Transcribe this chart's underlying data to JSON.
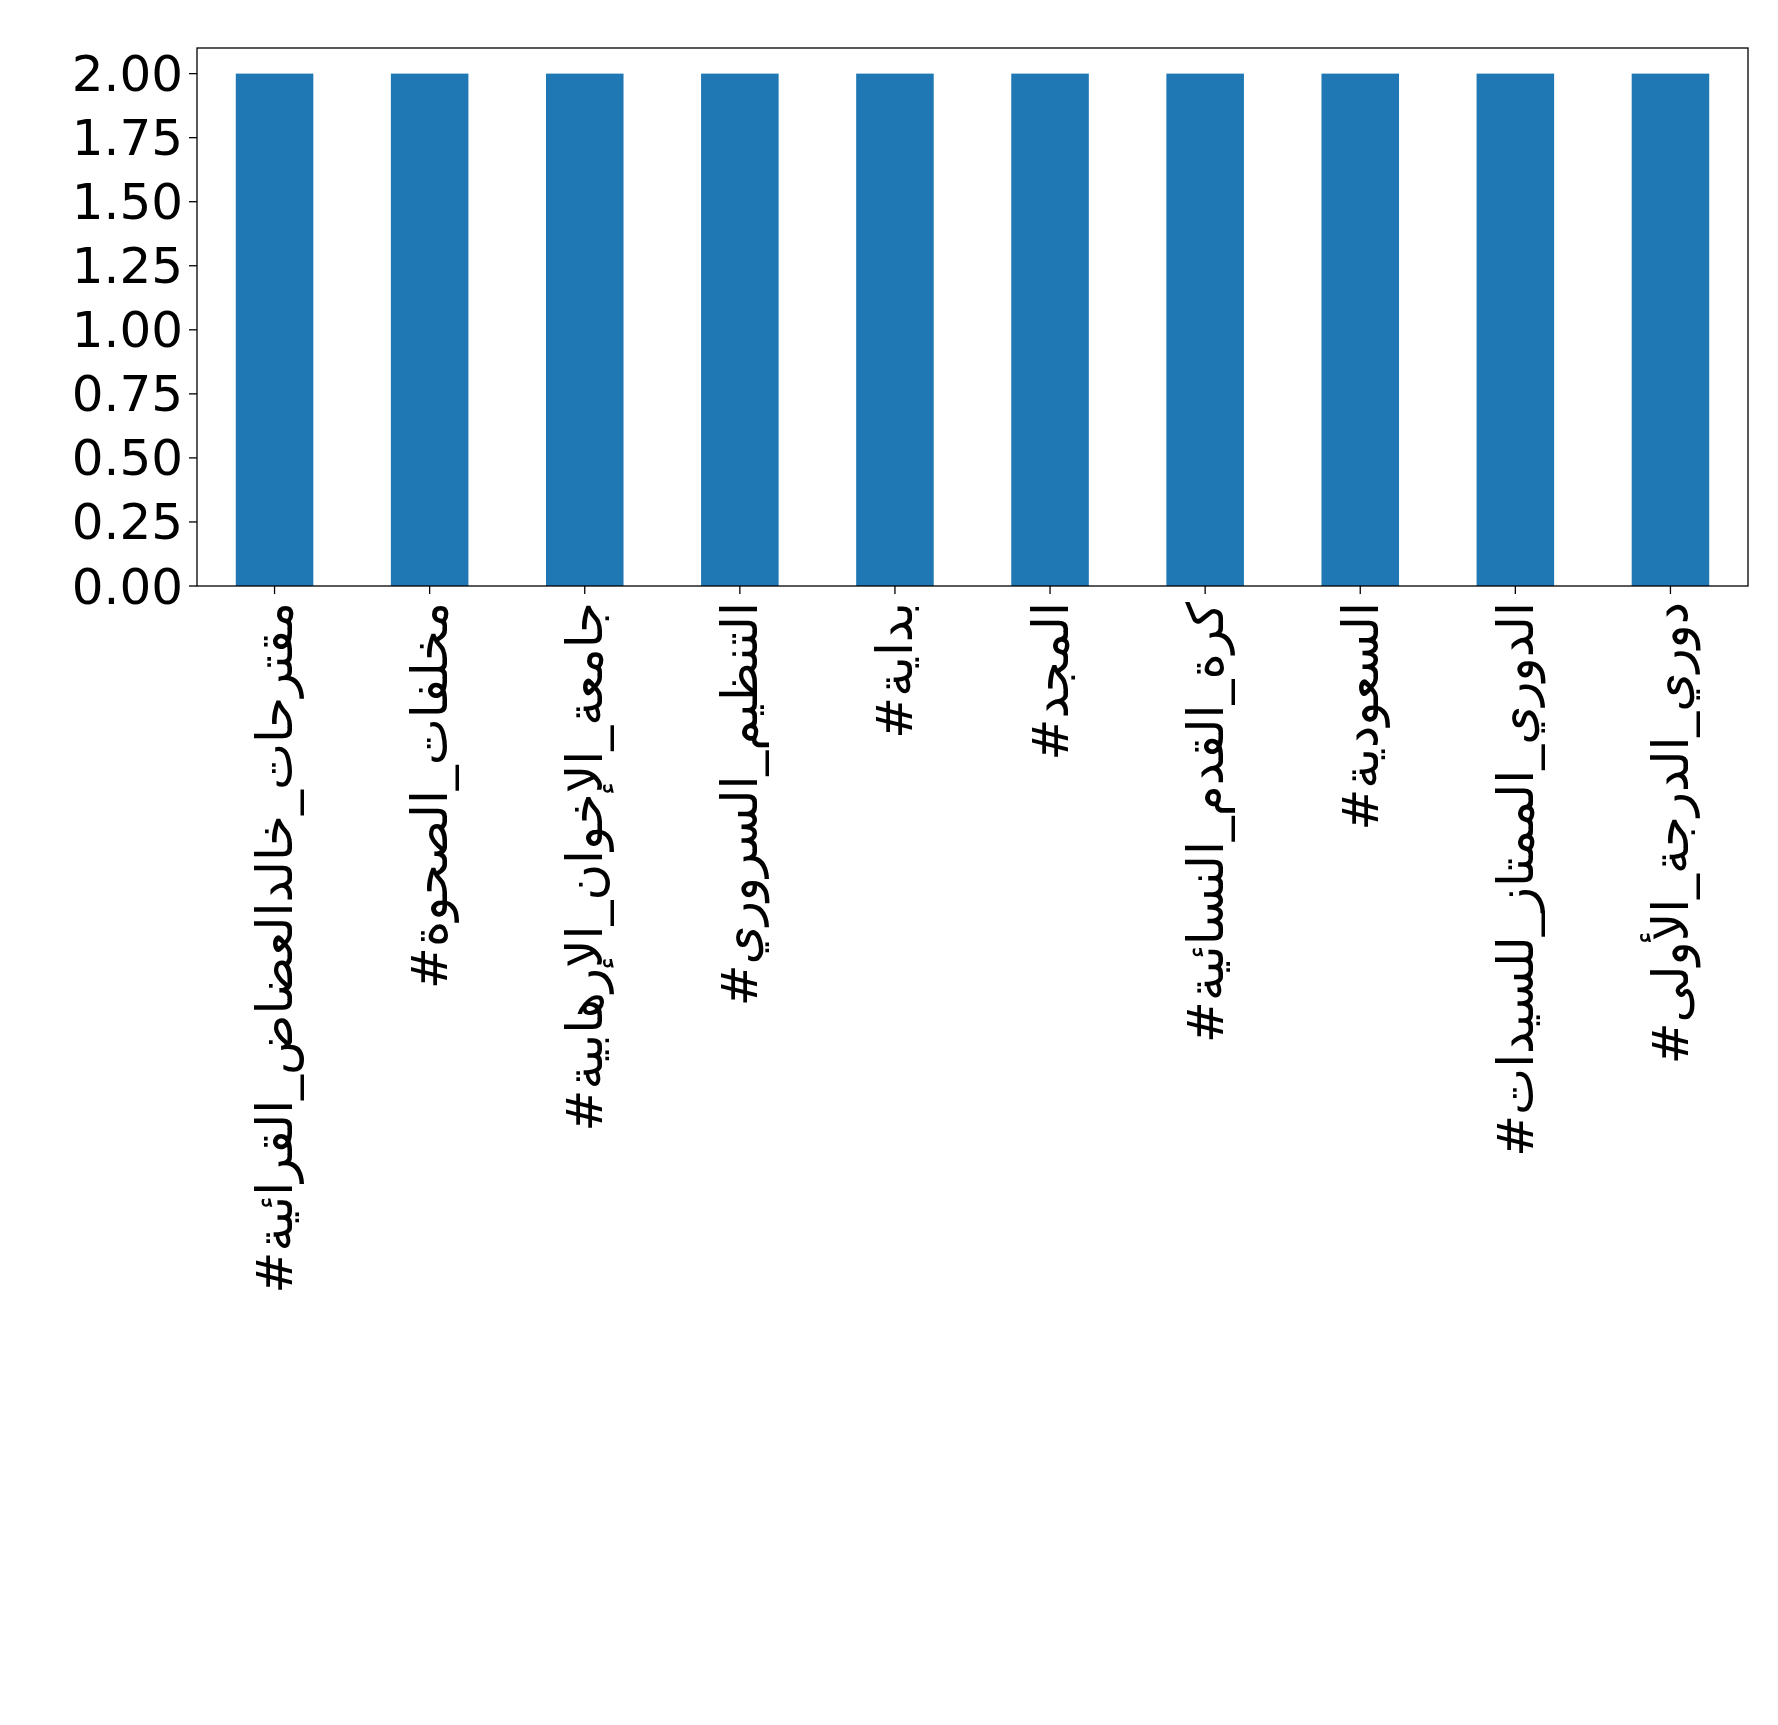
{
  "chart_data": {
    "type": "bar",
    "categories": [
      "#مقترحات_خالدالعضاض_القرائية",
      "#مخلفات_الصحوة",
      "#جامعة_الإخوان_الإرهابية",
      "#التنظيم_السروري",
      "#بداية",
      "#المجد",
      "#كرة_القدم_النسائية",
      "#السعودية",
      "#الدوري_الممتاز_للسيدات",
      "#دوري_الدرجة_الأولى"
    ],
    "values": [
      2,
      2,
      2,
      2,
      2,
      2,
      2,
      2,
      2,
      2
    ],
    "color": "#1f77b4",
    "ylim": [
      0,
      2.1
    ],
    "yticks": [
      {
        "value": 0,
        "label": "0.00"
      },
      {
        "value": 0.25,
        "label": "0.25"
      },
      {
        "value": 0.5,
        "label": "0.50"
      },
      {
        "value": 0.75,
        "label": "0.75"
      },
      {
        "value": 1,
        "label": "1.00"
      },
      {
        "value": 1.25,
        "label": "1.25"
      },
      {
        "value": 1.5,
        "label": "1.50"
      },
      {
        "value": 1.75,
        "label": "1.75"
      },
      {
        "value": 2,
        "label": "2.00"
      }
    ],
    "grid": false
  }
}
